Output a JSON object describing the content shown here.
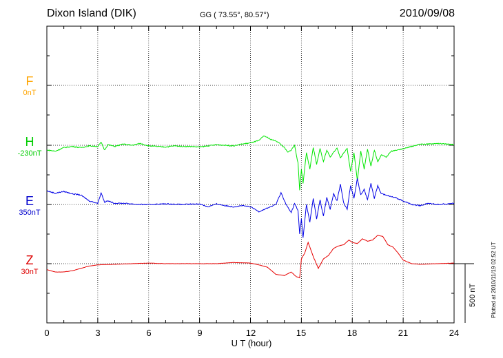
{
  "header": {
    "station": "Dixon Island (DIK)",
    "coords": "GG ( 73.55°,  80.57°)",
    "date": "2010/09/08"
  },
  "plotted_note": "Plotted at 2010/11/19 02:52 UT",
  "scale_label": "500 nT",
  "chart_data": {
    "type": "line",
    "xlabel": "U T (hour)",
    "xlim": [
      0,
      24
    ],
    "xticks": [
      "0",
      "3",
      "6",
      "9",
      "12",
      "15",
      "18",
      "21",
      "24"
    ],
    "scale_nT": 500,
    "grid": true,
    "series": [
      {
        "name": "F",
        "baseline_label": "0nT",
        "color": "#ffa500",
        "points": []
      },
      {
        "name": "H",
        "baseline_label": "-230nT",
        "color": "#00e600",
        "points": [
          [
            0,
            -40
          ],
          [
            0.5,
            -50
          ],
          [
            1,
            -20
          ],
          [
            1.5,
            -10
          ],
          [
            2,
            -20
          ],
          [
            2.5,
            -5
          ],
          [
            3,
            -10
          ],
          [
            3.2,
            25
          ],
          [
            3.4,
            -40
          ],
          [
            3.6,
            5
          ],
          [
            4,
            -10
          ],
          [
            4.5,
            10
          ],
          [
            5,
            0
          ],
          [
            5.5,
            15
          ],
          [
            6,
            -5
          ],
          [
            6.5,
            -10
          ],
          [
            7,
            -15
          ],
          [
            7.5,
            -5
          ],
          [
            8,
            -10
          ],
          [
            8.5,
            -10
          ],
          [
            9,
            -15
          ],
          [
            9.5,
            -5
          ],
          [
            10,
            5
          ],
          [
            10.5,
            0
          ],
          [
            11,
            -5
          ],
          [
            11.5,
            10
          ],
          [
            12,
            20
          ],
          [
            12.5,
            40
          ],
          [
            12.8,
            80
          ],
          [
            13.2,
            50
          ],
          [
            13.6,
            30
          ],
          [
            14,
            -20
          ],
          [
            14.2,
            -60
          ],
          [
            14.4,
            -40
          ],
          [
            14.6,
            0
          ],
          [
            14.8,
            -150
          ],
          [
            14.9,
            -380
          ],
          [
            15,
            -200
          ],
          [
            15.1,
            -320
          ],
          [
            15.3,
            -60
          ],
          [
            15.5,
            -200
          ],
          [
            15.7,
            -20
          ],
          [
            15.9,
            -160
          ],
          [
            16.1,
            -30
          ],
          [
            16.3,
            -140
          ],
          [
            16.5,
            -40
          ],
          [
            16.7,
            -100
          ],
          [
            16.9,
            -60
          ],
          [
            17.1,
            -20
          ],
          [
            17.3,
            -110
          ],
          [
            17.5,
            -60
          ],
          [
            17.7,
            -30
          ],
          [
            17.9,
            -220
          ],
          [
            18.1,
            -60
          ],
          [
            18.3,
            -300
          ],
          [
            18.5,
            -50
          ],
          [
            18.7,
            -200
          ],
          [
            18.9,
            -30
          ],
          [
            19.1,
            -180
          ],
          [
            19.3,
            -40
          ],
          [
            19.5,
            -140
          ],
          [
            19.7,
            -80
          ],
          [
            20,
            -100
          ],
          [
            20.3,
            -50
          ],
          [
            20.6,
            -40
          ],
          [
            21,
            -30
          ],
          [
            21.5,
            -10
          ],
          [
            22,
            10
          ],
          [
            22.5,
            10
          ],
          [
            23,
            15
          ],
          [
            23.5,
            10
          ],
          [
            24,
            5
          ]
        ]
      },
      {
        "name": "E",
        "baseline_label": "350nT",
        "color": "#0000e6",
        "points": [
          [
            0,
            115
          ],
          [
            0.5,
            95
          ],
          [
            1,
            110
          ],
          [
            1.5,
            90
          ],
          [
            2,
            80
          ],
          [
            2.5,
            30
          ],
          [
            3,
            10
          ],
          [
            3.2,
            100
          ],
          [
            3.4,
            20
          ],
          [
            3.6,
            30
          ],
          [
            4,
            10
          ],
          [
            4.5,
            10
          ],
          [
            5,
            5
          ],
          [
            5.5,
            0
          ],
          [
            6,
            0
          ],
          [
            7,
            5
          ],
          [
            8,
            0
          ],
          [
            9,
            5
          ],
          [
            9.5,
            -20
          ],
          [
            10,
            5
          ],
          [
            10.5,
            -10
          ],
          [
            11,
            -20
          ],
          [
            11.5,
            -10
          ],
          [
            12,
            -20
          ],
          [
            12.5,
            -60
          ],
          [
            13,
            -30
          ],
          [
            13.5,
            0
          ],
          [
            13.8,
            100
          ],
          [
            14.1,
            0
          ],
          [
            14.4,
            -70
          ],
          [
            14.6,
            10
          ],
          [
            14.8,
            -50
          ],
          [
            14.9,
            -250
          ],
          [
            15,
            -120
          ],
          [
            15.1,
            -280
          ],
          [
            15.3,
            0
          ],
          [
            15.5,
            -150
          ],
          [
            15.7,
            50
          ],
          [
            15.9,
            -120
          ],
          [
            16.1,
            40
          ],
          [
            16.3,
            -100
          ],
          [
            16.5,
            60
          ],
          [
            16.7,
            -40
          ],
          [
            16.9,
            90
          ],
          [
            17.1,
            30
          ],
          [
            17.3,
            170
          ],
          [
            17.5,
            10
          ],
          [
            17.7,
            -40
          ],
          [
            17.9,
            160
          ],
          [
            18.1,
            50
          ],
          [
            18.3,
            220
          ],
          [
            18.5,
            80
          ],
          [
            18.7,
            130
          ],
          [
            18.9,
            40
          ],
          [
            19.1,
            180
          ],
          [
            19.3,
            50
          ],
          [
            19.5,
            160
          ],
          [
            19.7,
            90
          ],
          [
            20,
            80
          ],
          [
            20.5,
            60
          ],
          [
            21,
            30
          ],
          [
            21.5,
            0
          ],
          [
            22,
            -10
          ],
          [
            22.5,
            10
          ],
          [
            23,
            0
          ],
          [
            23.5,
            5
          ],
          [
            24,
            10
          ]
        ]
      },
      {
        "name": "Z",
        "baseline_label": "30nT",
        "color": "#e60000",
        "points": [
          [
            0,
            -50
          ],
          [
            0.5,
            -70
          ],
          [
            1,
            -70
          ],
          [
            1.5,
            -60
          ],
          [
            2,
            -40
          ],
          [
            2.5,
            -20
          ],
          [
            3,
            -10
          ],
          [
            4,
            -5
          ],
          [
            5,
            0
          ],
          [
            6,
            5
          ],
          [
            7,
            0
          ],
          [
            8,
            0
          ],
          [
            9,
            0
          ],
          [
            10,
            0
          ],
          [
            11,
            10
          ],
          [
            12,
            5
          ],
          [
            12.5,
            -10
          ],
          [
            13,
            -30
          ],
          [
            13.5,
            -90
          ],
          [
            14,
            -100
          ],
          [
            14.4,
            -70
          ],
          [
            14.7,
            -110
          ],
          [
            14.9,
            -120
          ],
          [
            15,
            40
          ],
          [
            15.2,
            90
          ],
          [
            15.4,
            180
          ],
          [
            15.7,
            60
          ],
          [
            16,
            -40
          ],
          [
            16.3,
            40
          ],
          [
            16.6,
            70
          ],
          [
            16.9,
            130
          ],
          [
            17.2,
            150
          ],
          [
            17.5,
            160
          ],
          [
            17.8,
            200
          ],
          [
            18,
            180
          ],
          [
            18.3,
            170
          ],
          [
            18.6,
            210
          ],
          [
            18.9,
            190
          ],
          [
            19.2,
            200
          ],
          [
            19.5,
            240
          ],
          [
            19.8,
            230
          ],
          [
            20.1,
            160
          ],
          [
            20.4,
            140
          ],
          [
            20.7,
            90
          ],
          [
            21,
            30
          ],
          [
            21.5,
            0
          ],
          [
            22,
            -5
          ],
          [
            23,
            0
          ],
          [
            24,
            5
          ]
        ]
      }
    ]
  }
}
